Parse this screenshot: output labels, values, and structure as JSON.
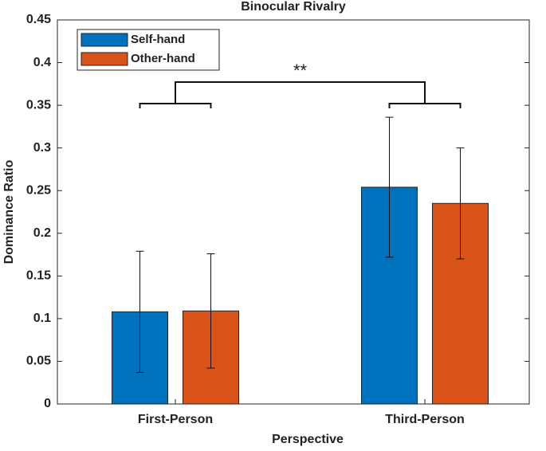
{
  "chart_data": {
    "type": "bar",
    "title": "Binocular Rivalry",
    "xlabel": "Perspective",
    "ylabel": "Dominance Ratio",
    "categories": [
      "First-Person",
      "Third-Person"
    ],
    "series": [
      {
        "name": "Self-hand",
        "color": "#0072bd",
        "values": [
          0.108,
          0.254
        ],
        "errors": [
          0.071,
          0.082
        ]
      },
      {
        "name": "Other-hand",
        "color": "#d95319",
        "values": [
          0.109,
          0.235
        ],
        "errors": [
          0.067,
          0.065
        ]
      }
    ],
    "ylim": [
      0,
      0.45
    ],
    "yticks": [
      0,
      0.05,
      0.1,
      0.15,
      0.2,
      0.25,
      0.3,
      0.35,
      0.4,
      0.45
    ],
    "grid": false,
    "legend": "upper left",
    "annotation": "**"
  }
}
